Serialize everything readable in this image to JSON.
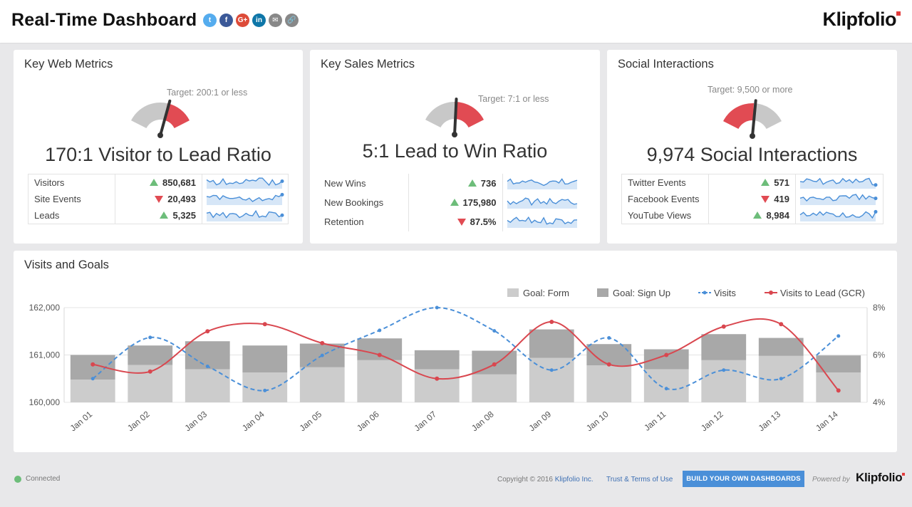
{
  "header": {
    "title": "Real-Time Dashboard",
    "share_icons": [
      {
        "name": "twitter-icon",
        "glyph": "t",
        "color": "#55acee"
      },
      {
        "name": "facebook-icon",
        "glyph": "f",
        "color": "#3b5998"
      },
      {
        "name": "google-plus-icon",
        "glyph": "G+",
        "color": "#dd4b39"
      },
      {
        "name": "linkedin-icon",
        "glyph": "in",
        "color": "#0e76a8"
      },
      {
        "name": "email-icon",
        "glyph": "✉",
        "color": "#888888"
      },
      {
        "name": "link-icon",
        "glyph": "🔗",
        "color": "#888888"
      }
    ],
    "logo": "Klipfolio"
  },
  "web": {
    "title": "Key Web Metrics",
    "target": "Target: 200:1 or less",
    "headline": "170:1 Visitor to Lead Ratio",
    "gauge_fraction": 0.6,
    "rows": [
      {
        "label": "Visitors",
        "dir": "up",
        "value": "850,681"
      },
      {
        "label": "Site Events",
        "dir": "down",
        "value": "20,493"
      },
      {
        "label": "Leads",
        "dir": "up",
        "value": "5,325"
      }
    ]
  },
  "sales": {
    "title": "Key Sales Metrics",
    "target": "Target: 7:1 or less",
    "headline": "5:1 Lead to Win Ratio",
    "gauge_fraction": 0.5,
    "rows": [
      {
        "label": "New Wins",
        "dir": "up",
        "value": "736"
      },
      {
        "label": "New Bookings",
        "dir": "up",
        "value": "175,980"
      },
      {
        "label": "Retention",
        "dir": "down",
        "value": "87.5%"
      }
    ]
  },
  "social": {
    "title": "Social Interactions",
    "target": "Target: 9,500 or more",
    "headline": "9,974 Social Interactions",
    "gauge_fraction": 0.52,
    "rows": [
      {
        "label": "Twitter Events",
        "dir": "up",
        "value": "571"
      },
      {
        "label": "Facebook Events",
        "dir": "down",
        "value": "419"
      },
      {
        "label": "YouTube Views",
        "dir": "up",
        "value": "8,984"
      }
    ]
  },
  "visits": {
    "title": "Visits and Goals"
  },
  "chart_data": {
    "type": "bar",
    "categories": [
      "Jan 01",
      "Jan 02",
      "Jan 03",
      "Jan 04",
      "Jan 05",
      "Jan 06",
      "Jan 07",
      "Jan 08",
      "Jan 09",
      "Jan 10",
      "Jan 11",
      "Jan 12",
      "Jan 13",
      "Jan 14"
    ],
    "series": [
      {
        "name": "Goal: Form",
        "kind": "bar-stacked",
        "color": "#cccccc",
        "values": [
          160480,
          160790,
          160700,
          160630,
          160740,
          160890,
          160700,
          160590,
          160940,
          160780,
          160700,
          160890,
          160980,
          160630
        ]
      },
      {
        "name": "Goal: Sign Up",
        "kind": "bar-stacked",
        "color": "#a8a8a8",
        "values": [
          520,
          410,
          590,
          570,
          500,
          460,
          400,
          500,
          600,
          450,
          420,
          550,
          380,
          360
        ]
      },
      {
        "name": "Visits",
        "kind": "line-dashed",
        "color": "#4a8fd8",
        "values": [
          160500,
          161370,
          160760,
          160250,
          160990,
          161520,
          162000,
          161510,
          160680,
          161360,
          160290,
          160680,
          160500,
          161400
        ]
      },
      {
        "name": "Visits to Lead (GCR)",
        "kind": "line",
        "axis": "right",
        "color": "#d9474f",
        "values": [
          5.6,
          5.3,
          7.0,
          7.3,
          6.5,
          6.0,
          5.0,
          5.6,
          7.4,
          5.6,
          6.0,
          7.2,
          7.3,
          4.5
        ]
      }
    ],
    "ylim": [
      160000,
      162000
    ],
    "yticks": [
      "160,000",
      "161,000",
      "162,000"
    ],
    "y2lim": [
      4,
      8
    ],
    "y2ticks": [
      "4%",
      "6%",
      "8%"
    ],
    "legend": "top-right",
    "grid": true
  },
  "footer": {
    "status": "Connected",
    "copyright_prefix": "Copyright © 2016",
    "copyright_link": "Klipfolio Inc.",
    "terms": "Trust & Terms of Use",
    "build_button": "BUILD YOUR OWN DASHBOARDS",
    "powered_by": "Powered by",
    "logo": "Klipfolio"
  }
}
